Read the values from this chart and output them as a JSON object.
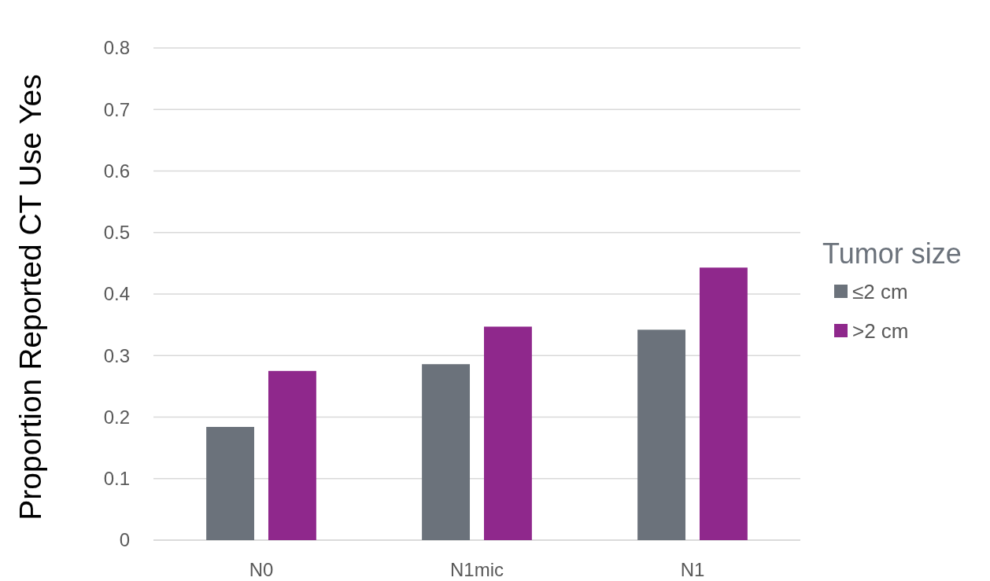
{
  "chart_data": {
    "type": "bar",
    "categories": [
      "N0",
      "N1mic",
      "N1"
    ],
    "series": [
      {
        "name": "≤2 cm",
        "color": "#6b727b",
        "values": [
          0.184,
          0.286,
          0.342
        ]
      },
      {
        "name": ">2 cm",
        "color": "#8f288c",
        "values": [
          0.275,
          0.347,
          0.443
        ]
      }
    ],
    "ylabel": "Proportion Reported CT Use Yes",
    "legend_title": "Tumor size",
    "ylim": [
      0,
      0.8
    ],
    "yticks": [
      0,
      0.1,
      0.2,
      0.3,
      0.4,
      0.5,
      0.6,
      0.7,
      0.8
    ],
    "grid": "y",
    "legend": "right"
  }
}
